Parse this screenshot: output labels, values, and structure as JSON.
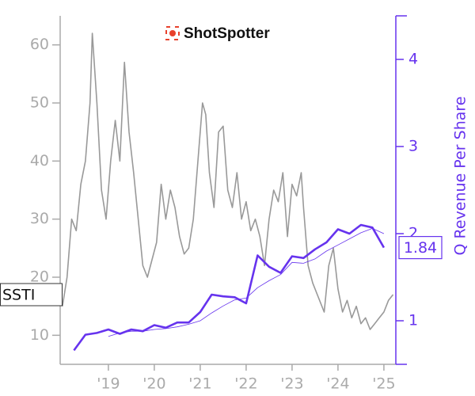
{
  "chart_data": {
    "type": "line",
    "logo": "ShotSpotter",
    "ticker": "SSTI",
    "y2_label": "Q Revenue Per Share",
    "xlim": [
      2017.95,
      2025.26
    ],
    "xticks": [
      {
        "value": 2019,
        "label": "'19"
      },
      {
        "value": 2020,
        "label": "'20"
      },
      {
        "value": 2021,
        "label": "'21"
      },
      {
        "value": 2022,
        "label": "'22"
      },
      {
        "value": 2023,
        "label": "'23"
      },
      {
        "value": 2024,
        "label": "'24"
      },
      {
        "value": 2025,
        "label": "'25"
      }
    ],
    "ylim": [
      5,
      65
    ],
    "yticks": [
      10,
      20,
      30,
      40,
      50,
      60
    ],
    "y2lim": [
      0.5,
      4.5
    ],
    "y2ticks": [
      1,
      2,
      3,
      4
    ],
    "series": [
      {
        "color": "#999999",
        "axis": "y",
        "width": 1.6,
        "x": [
          2018.0,
          2018.1,
          2018.2,
          2018.3,
          2018.4,
          2018.5,
          2018.6,
          2018.65,
          2018.75,
          2018.85,
          2018.95,
          2019.05,
          2019.15,
          2019.25,
          2019.35,
          2019.45,
          2019.55,
          2019.65,
          2019.75,
          2019.85,
          2019.95,
          2020.05,
          2020.15,
          2020.25,
          2020.35,
          2020.45,
          2020.55,
          2020.65,
          2020.75,
          2020.85,
          2020.95,
          2021.05,
          2021.12,
          2021.2,
          2021.3,
          2021.4,
          2021.5,
          2021.6,
          2021.7,
          2021.8,
          2021.9,
          2022.0,
          2022.1,
          2022.2,
          2022.3,
          2022.4,
          2022.5,
          2022.6,
          2022.7,
          2022.8,
          2022.9,
          2023.0,
          2023.1,
          2023.2,
          2023.25,
          2023.35,
          2023.45,
          2023.55,
          2023.7,
          2023.8,
          2023.9,
          2024.0,
          2024.1,
          2024.2,
          2024.3,
          2024.4,
          2024.5,
          2024.6,
          2024.7,
          2024.8,
          2024.9,
          2025.0,
          2025.1,
          2025.2
        ],
        "values": [
          15,
          20,
          30,
          28,
          36,
          40,
          50,
          62,
          50,
          35,
          30,
          40,
          47,
          40,
          57,
          45,
          38,
          30,
          22,
          20,
          23,
          26,
          36,
          30,
          35,
          32,
          27,
          24,
          25,
          30,
          40,
          50,
          48,
          38,
          32,
          45,
          46,
          35,
          32,
          38,
          30,
          33,
          28,
          30,
          27,
          22,
          30,
          35,
          33,
          38,
          27,
          36,
          34,
          38,
          32,
          22,
          19,
          17,
          14,
          22,
          25,
          18,
          14,
          16,
          13,
          15,
          12,
          13,
          11,
          12,
          13,
          14,
          16,
          17
        ]
      },
      {
        "color": "#6633ee",
        "axis": "y2",
        "width": 2.6,
        "x": [
          2018.25,
          2018.5,
          2018.75,
          2019.0,
          2019.25,
          2019.5,
          2019.75,
          2020.0,
          2020.25,
          2020.5,
          2020.75,
          2021.0,
          2021.25,
          2021.5,
          2021.75,
          2022.0,
          2022.25,
          2022.5,
          2022.75,
          2023.0,
          2023.25,
          2023.5,
          2023.75,
          2024.0,
          2024.25,
          2024.5,
          2024.75,
          2025.0
        ],
        "values": [
          0.66,
          0.84,
          0.86,
          0.9,
          0.85,
          0.9,
          0.88,
          0.95,
          0.92,
          0.98,
          0.98,
          1.1,
          1.3,
          1.28,
          1.27,
          1.2,
          1.75,
          1.62,
          1.55,
          1.74,
          1.72,
          1.82,
          1.9,
          2.05,
          2.0,
          2.1,
          2.07,
          1.84
        ]
      },
      {
        "color": "#6633ee",
        "axis": "y2",
        "width": 0.8,
        "x": [
          2018.25,
          2018.5,
          2018.75,
          2019.0,
          2019.25,
          2019.5,
          2019.75,
          2020.0,
          2020.25,
          2020.5,
          2020.75,
          2021.0,
          2021.25,
          2021.5,
          2021.75,
          2022.0,
          2022.25,
          2022.5,
          2022.75,
          2023.0,
          2023.25,
          2023.5,
          2023.75,
          2024.0,
          2024.25,
          2024.5,
          2024.75,
          2025.0
        ],
        "values": [
          null,
          null,
          null,
          0.82,
          0.86,
          0.88,
          0.88,
          0.9,
          0.91,
          0.93,
          0.96,
          1.0,
          1.09,
          1.17,
          1.24,
          1.26,
          1.38,
          1.46,
          1.53,
          1.67,
          1.66,
          1.71,
          1.8,
          1.87,
          1.94,
          2.01,
          2.06,
          2.0
        ]
      }
    ]
  }
}
